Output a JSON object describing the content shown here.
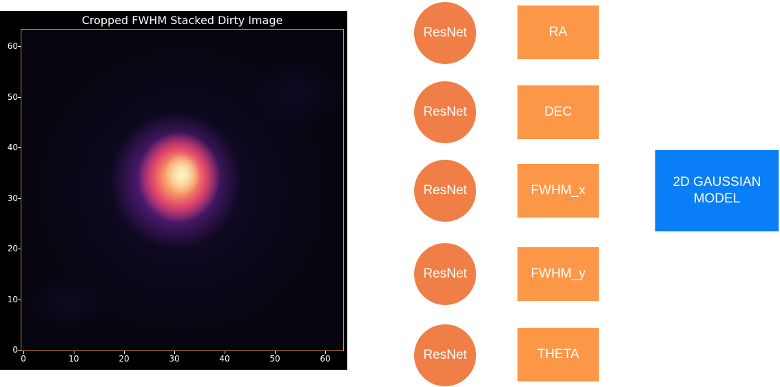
{
  "heatmap_panel": {
    "title": "Cropped FWHM Stacked Dirty Image",
    "colormap": "magma",
    "y_ticks": [
      "0",
      "10",
      "20",
      "30",
      "40",
      "50",
      "60"
    ],
    "x_ticks": [
      "0",
      "10",
      "20",
      "30",
      "40",
      "50",
      "60"
    ],
    "axis_range": [
      0,
      64
    ]
  },
  "pipeline": {
    "resnet_nodes": [
      "ResNet",
      "ResNet",
      "ResNet",
      "ResNet",
      "ResNet"
    ],
    "parameters": [
      "RA",
      "DEC",
      "FWHM_x",
      "FWHM_y",
      "THETA"
    ],
    "model": "2D GAUSSIAN\nMODEL"
  },
  "colors": {
    "resnet_node": "#ef7f46",
    "parameter_box": "#fb9747",
    "model_box": "#0a7ef7",
    "frame": "#e0962e"
  }
}
